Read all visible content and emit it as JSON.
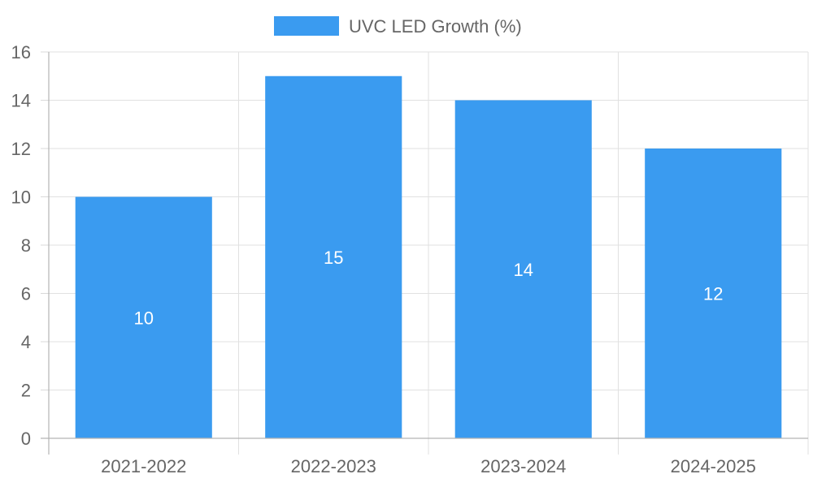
{
  "chart_data": {
    "type": "bar",
    "categories": [
      "2021-2022",
      "2022-2023",
      "2023-2024",
      "2024-2025"
    ],
    "series": [
      {
        "name": "UVC LED Growth (%)",
        "values": [
          10,
          15,
          14,
          12
        ],
        "color": "#3a9bf0"
      }
    ],
    "title": "",
    "xlabel": "",
    "ylabel": "",
    "ylim": [
      0,
      16
    ],
    "yticks": [
      "0",
      "2",
      "4",
      "6",
      "8",
      "10",
      "12",
      "14",
      "16"
    ],
    "data_labels": [
      "10",
      "15",
      "14",
      "12"
    ],
    "legend_position": "top-center",
    "grid": true
  }
}
